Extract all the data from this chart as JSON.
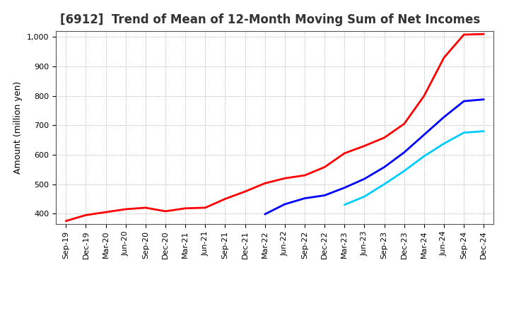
{
  "title": "[6912]  Trend of Mean of 12-Month Moving Sum of Net Incomes",
  "ylabel": "Amount (million yen)",
  "background_color": "#ffffff",
  "grid_color": "#999999",
  "ylim": [
    365,
    1020
  ],
  "yticks": [
    400,
    500,
    600,
    700,
    800,
    900,
    1000
  ],
  "ytick_labels": [
    "400",
    "500",
    "600",
    "700",
    "800",
    "900",
    "1,000"
  ],
  "x_labels": [
    "Sep-19",
    "Dec-19",
    "Mar-20",
    "Jun-20",
    "Sep-20",
    "Dec-20",
    "Mar-21",
    "Jun-21",
    "Sep-21",
    "Dec-21",
    "Mar-22",
    "Jun-22",
    "Sep-22",
    "Dec-22",
    "Mar-23",
    "Jun-23",
    "Sep-23",
    "Dec-23",
    "Mar-24",
    "Jun-24",
    "Sep-24",
    "Dec-24"
  ],
  "series_3yr": [
    375,
    395,
    405,
    415,
    420,
    408,
    418,
    420,
    450,
    475,
    503,
    520,
    530,
    558,
    605,
    630,
    658,
    705,
    800,
    930,
    1008,
    1010
  ],
  "series_5yr": [
    null,
    null,
    null,
    null,
    null,
    null,
    null,
    null,
    null,
    null,
    398,
    432,
    452,
    462,
    488,
    518,
    558,
    608,
    668,
    728,
    782,
    788
  ],
  "series_7yr": [
    null,
    null,
    null,
    null,
    null,
    null,
    null,
    null,
    null,
    null,
    null,
    null,
    null,
    null,
    null,
    null,
    null,
    null,
    null,
    null,
    null,
    null
  ],
  "series_7yr_data": [
    null,
    null,
    null,
    null,
    null,
    null,
    null,
    null,
    null,
    null,
    null,
    null,
    null,
    null,
    430,
    458,
    500,
    545,
    595,
    638,
    675,
    680
  ],
  "series_10yr": [
    null,
    null,
    null,
    null,
    null,
    null,
    null,
    null,
    null,
    null,
    null,
    null,
    null,
    null,
    null,
    null,
    null,
    null,
    null,
    null,
    null,
    null
  ],
  "color_3yr": "#ff0000",
  "color_5yr": "#0000ff",
  "color_7yr": "#00ccff",
  "color_10yr": "#008800",
  "title_color": "#333333",
  "title_fontsize": 12,
  "tick_fontsize": 8,
  "ylabel_fontsize": 9,
  "legend_fontsize": 9,
  "line_width": 2.0
}
